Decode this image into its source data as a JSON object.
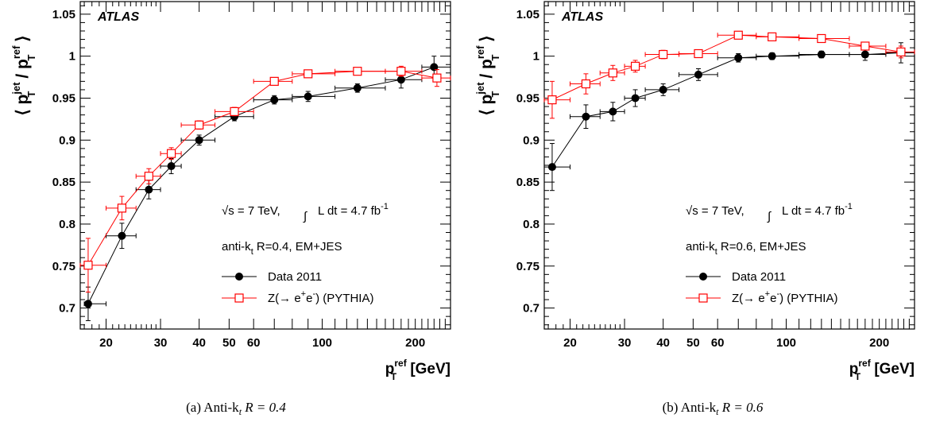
{
  "chart_data": [
    {
      "type": "scatter",
      "panel": "a",
      "caption": "(a) Anti-k",
      "caption_sub": "t",
      "caption_tail": " R = 0.4",
      "experiment_label": "ATLAS",
      "ylabel": "⟨ pTjet / pTref ⟩",
      "xlabel": "pTref [GeV]",
      "x_scale": "log",
      "xlim": [
        16.5,
        260
      ],
      "ylim": [
        0.675,
        1.065
      ],
      "x_ticks": [
        20,
        30,
        40,
        50,
        60,
        100,
        200
      ],
      "y_ticks": [
        0.7,
        0.75,
        0.8,
        0.85,
        0.9,
        0.95,
        1,
        1.05
      ],
      "y_tick_labels": [
        "0.7",
        "0.75",
        "0.8",
        "0.85",
        "0.9",
        "0.95",
        "1",
        "1.05"
      ],
      "info_energy": "√s = 7 TeV,",
      "info_lumi": "L dt = 4.7 fb",
      "info_lumi_sup": "-1",
      "info_algo": "anti-k",
      "info_algo_sub": "t",
      "info_algo_tail": " R=0.4, EM+JES",
      "legend_position": "center-right",
      "series": [
        {
          "name": "Data 2011",
          "color": "#000000",
          "marker": "filled-circle",
          "points": [
            {
              "x": 17.5,
              "y": 0.705,
              "xerr": [
                17,
                20
              ],
              "yerr": 0.02
            },
            {
              "x": 22.5,
              "y": 0.786,
              "xerr": [
                20,
                25
              ],
              "yerr": 0.015
            },
            {
              "x": 27.5,
              "y": 0.841,
              "xerr": [
                25,
                30
              ],
              "yerr": 0.011
            },
            {
              "x": 32.5,
              "y": 0.869,
              "xerr": [
                30,
                35
              ],
              "yerr": 0.009
            },
            {
              "x": 40,
              "y": 0.9,
              "xerr": [
                35,
                45
              ],
              "yerr": 0.006
            },
            {
              "x": 52,
              "y": 0.928,
              "xerr": [
                45,
                60
              ],
              "yerr": 0.005
            },
            {
              "x": 70,
              "y": 0.948,
              "xerr": [
                60,
                80
              ],
              "yerr": 0.005
            },
            {
              "x": 90,
              "y": 0.952,
              "xerr": [
                80,
                110
              ],
              "yerr": 0.006
            },
            {
              "x": 130,
              "y": 0.962,
              "xerr": [
                110,
                160
              ],
              "yerr": 0.005
            },
            {
              "x": 180,
              "y": 0.972,
              "xerr": [
                160,
                210
              ],
              "yerr": 0.01
            },
            {
              "x": 230,
              "y": 0.987,
              "xerr": [
                210,
                260
              ],
              "yerr": 0.013
            }
          ]
        },
        {
          "name": "Z(→ e+e-) (PYTHIA)",
          "legend_main": "Z(→ e",
          "legend_sup1": "+",
          "legend_mid": "e",
          "legend_sup2": "-",
          "legend_tail": ") (PYTHIA)",
          "color": "#ff0000",
          "marker": "open-square",
          "points": [
            {
              "x": 17.5,
              "y": 0.751,
              "xerr": [
                16.5,
                20
              ],
              "yerr": 0.032
            },
            {
              "x": 22.5,
              "y": 0.819,
              "xerr": [
                20,
                25
              ],
              "yerr": 0.014
            },
            {
              "x": 27.5,
              "y": 0.857,
              "xerr": [
                25,
                30
              ],
              "yerr": 0.009
            },
            {
              "x": 32.5,
              "y": 0.884,
              "xerr": [
                30,
                35
              ],
              "yerr": 0.007
            },
            {
              "x": 40,
              "y": 0.918,
              "xerr": [
                35,
                45
              ],
              "yerr": 0.005
            },
            {
              "x": 52,
              "y": 0.934,
              "xerr": [
                45,
                60
              ],
              "yerr": 0.005
            },
            {
              "x": 70,
              "y": 0.97,
              "xerr": [
                60,
                80
              ],
              "yerr": 0.004
            },
            {
              "x": 90,
              "y": 0.979,
              "xerr": [
                80,
                110
              ],
              "yerr": 0.004
            },
            {
              "x": 130,
              "y": 0.982,
              "xerr": [
                110,
                160
              ],
              "yerr": 0.004
            },
            {
              "x": 180,
              "y": 0.982,
              "xerr": [
                160,
                210
              ],
              "yerr": 0.006
            },
            {
              "x": 235,
              "y": 0.974,
              "xerr": [
                210,
                260
              ],
              "yerr": 0.01
            }
          ]
        }
      ]
    },
    {
      "type": "scatter",
      "panel": "b",
      "caption": "(b) Anti-k",
      "caption_sub": "t",
      "caption_tail": " R = 0.6",
      "experiment_label": "ATLAS",
      "ylabel": "⟨ pTjet / pTref ⟩",
      "xlabel": "pTref [GeV]",
      "x_scale": "log",
      "xlim": [
        16.5,
        260
      ],
      "ylim": [
        0.675,
        1.065
      ],
      "x_ticks": [
        20,
        30,
        40,
        50,
        60,
        100,
        200
      ],
      "y_ticks": [
        0.7,
        0.75,
        0.8,
        0.85,
        0.9,
        0.95,
        1,
        1.05
      ],
      "y_tick_labels": [
        "0.7",
        "0.75",
        "0.8",
        "0.85",
        "0.9",
        "0.95",
        "1",
        "1.05"
      ],
      "info_energy": "√s = 7 TeV,",
      "info_lumi": "L dt = 4.7 fb",
      "info_lumi_sup": "-1",
      "info_algo": "anti-k",
      "info_algo_sub": "t",
      "info_algo_tail": " R=0.6, EM+JES",
      "legend_position": "center-right",
      "series": [
        {
          "name": "Data 2011",
          "color": "#000000",
          "marker": "filled-circle",
          "points": [
            {
              "x": 17.5,
              "y": 0.868,
              "xerr": [
                16.5,
                20
              ],
              "yerr": 0.028
            },
            {
              "x": 22.5,
              "y": 0.928,
              "xerr": [
                20,
                25
              ],
              "yerr": 0.014
            },
            {
              "x": 27.5,
              "y": 0.934,
              "xerr": [
                25,
                30
              ],
              "yerr": 0.011
            },
            {
              "x": 32.5,
              "y": 0.95,
              "xerr": [
                30,
                35
              ],
              "yerr": 0.01
            },
            {
              "x": 40,
              "y": 0.96,
              "xerr": [
                35,
                45
              ],
              "yerr": 0.007
            },
            {
              "x": 52,
              "y": 0.978,
              "xerr": [
                45,
                60
              ],
              "yerr": 0.007
            },
            {
              "x": 70,
              "y": 0.998,
              "xerr": [
                60,
                80
              ],
              "yerr": 0.005
            },
            {
              "x": 90,
              "y": 1.0,
              "xerr": [
                80,
                110
              ],
              "yerr": 0.004
            },
            {
              "x": 130,
              "y": 1.002,
              "xerr": [
                110,
                160
              ],
              "yerr": 0.004
            },
            {
              "x": 180,
              "y": 1.002,
              "xerr": [
                160,
                210
              ],
              "yerr": 0.007
            },
            {
              "x": 235,
              "y": 1.004,
              "xerr": [
                210,
                260
              ],
              "yerr": 0.012
            }
          ]
        },
        {
          "name": "Z(→ e+e-) (PYTHIA)",
          "legend_main": "Z(→ e",
          "legend_sup1": "+",
          "legend_mid": "e",
          "legend_sup2": "-",
          "legend_tail": ") (PYTHIA)",
          "color": "#ff0000",
          "marker": "open-square",
          "points": [
            {
              "x": 17.5,
              "y": 0.948,
              "xerr": [
                16.5,
                20
              ],
              "yerr": 0.022
            },
            {
              "x": 22.5,
              "y": 0.967,
              "xerr": [
                20,
                25
              ],
              "yerr": 0.012
            },
            {
              "x": 27.5,
              "y": 0.98,
              "xerr": [
                25,
                30
              ],
              "yerr": 0.009
            },
            {
              "x": 32.5,
              "y": 0.988,
              "xerr": [
                30,
                35
              ],
              "yerr": 0.007
            },
            {
              "x": 40,
              "y": 1.002,
              "xerr": [
                35,
                45
              ],
              "yerr": 0.005
            },
            {
              "x": 52,
              "y": 1.003,
              "xerr": [
                45,
                60
              ],
              "yerr": 0.004
            },
            {
              "x": 70,
              "y": 1.025,
              "xerr": [
                60,
                80
              ],
              "yerr": 0.003
            },
            {
              "x": 90,
              "y": 1.023,
              "xerr": [
                80,
                110
              ],
              "yerr": 0.003
            },
            {
              "x": 130,
              "y": 1.021,
              "xerr": [
                110,
                160
              ],
              "yerr": 0.003
            },
            {
              "x": 180,
              "y": 1.012,
              "xerr": [
                160,
                210
              ],
              "yerr": 0.004
            },
            {
              "x": 235,
              "y": 1.005,
              "xerr": [
                210,
                260
              ],
              "yerr": 0.007
            }
          ]
        }
      ]
    }
  ]
}
